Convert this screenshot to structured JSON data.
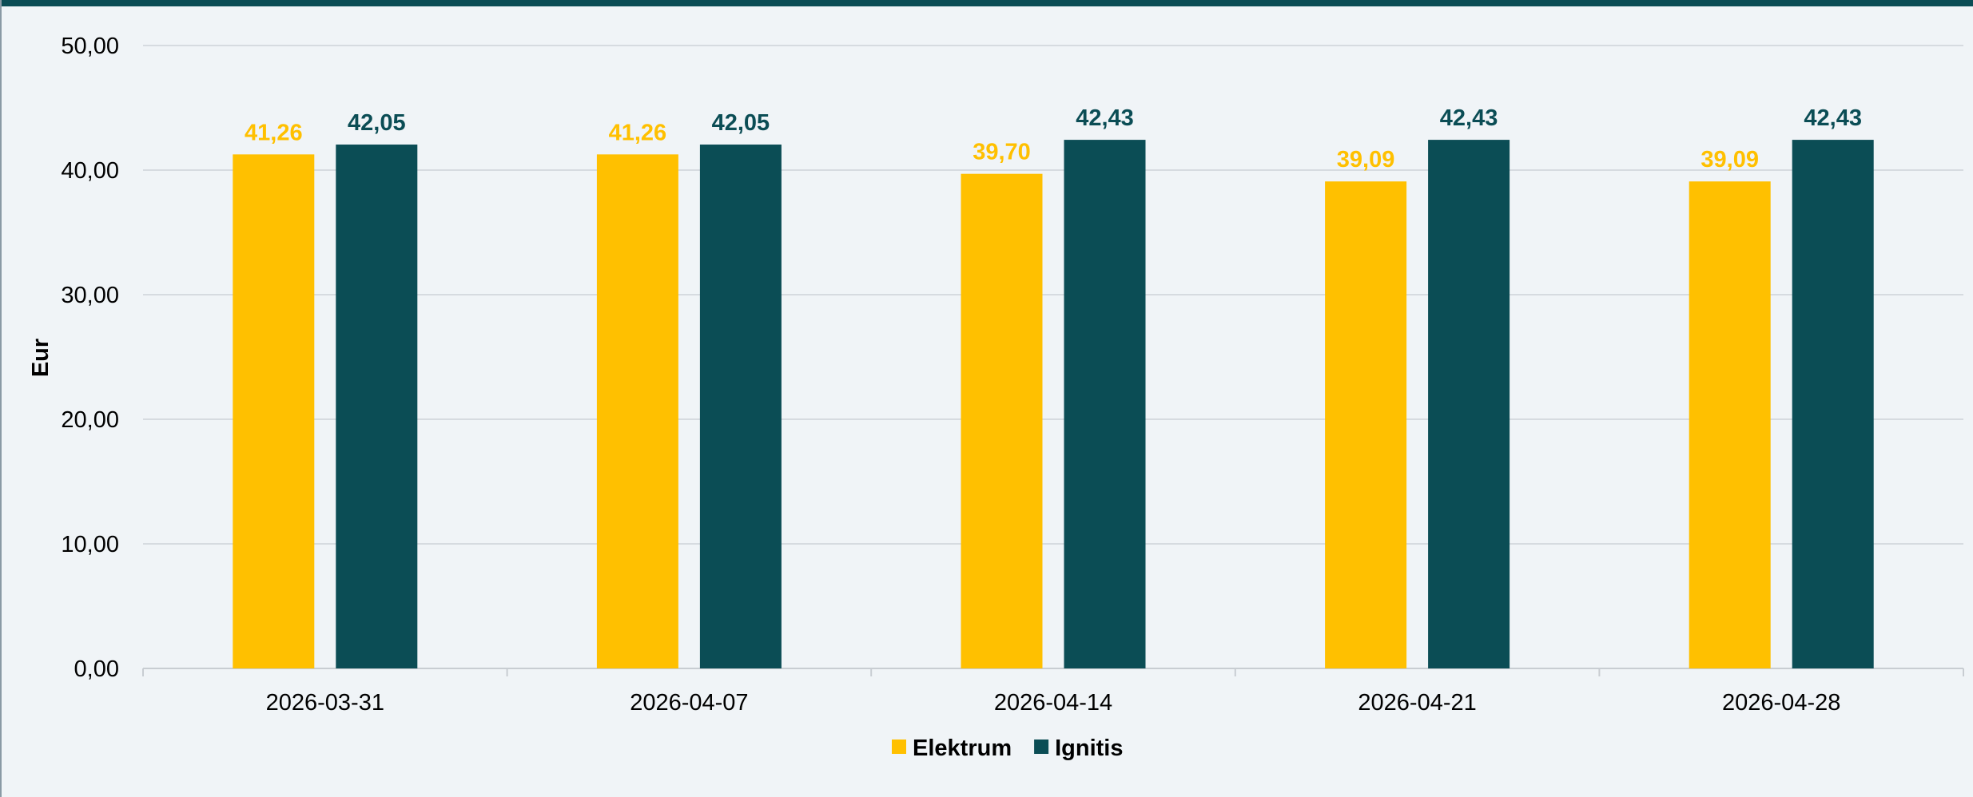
{
  "colors": {
    "header": "#0b4d55",
    "background": "#f0f4f7",
    "gridline": "#d6dbe0",
    "axis": "#c8cdd2"
  },
  "chart_data": {
    "type": "bar",
    "categories": [
      "2026-03-31",
      "2026-04-07",
      "2026-04-14",
      "2026-04-21",
      "2026-04-28"
    ],
    "series": [
      {
        "name": "Elektrum",
        "color": "#ffc000",
        "values": [
          41.26,
          41.26,
          39.7,
          39.09,
          39.09
        ],
        "labels": [
          "41,26",
          "41,26",
          "39,70",
          "39,09",
          "39,09"
        ]
      },
      {
        "name": "Ignitis",
        "color": "#0b4d55",
        "values": [
          42.05,
          42.05,
          42.43,
          42.43,
          42.43
        ],
        "labels": [
          "42,05",
          "42,05",
          "42,43",
          "42,43",
          "42,43"
        ]
      }
    ],
    "ylabel": "Eur",
    "xlabel": "",
    "ylim": [
      0,
      50
    ],
    "yticks": [
      0,
      10,
      20,
      30,
      40,
      50
    ],
    "ytick_labels": [
      "0,00",
      "10,00",
      "20,00",
      "30,00",
      "40,00",
      "50,00"
    ],
    "grid": true,
    "legend_position": "bottom"
  }
}
